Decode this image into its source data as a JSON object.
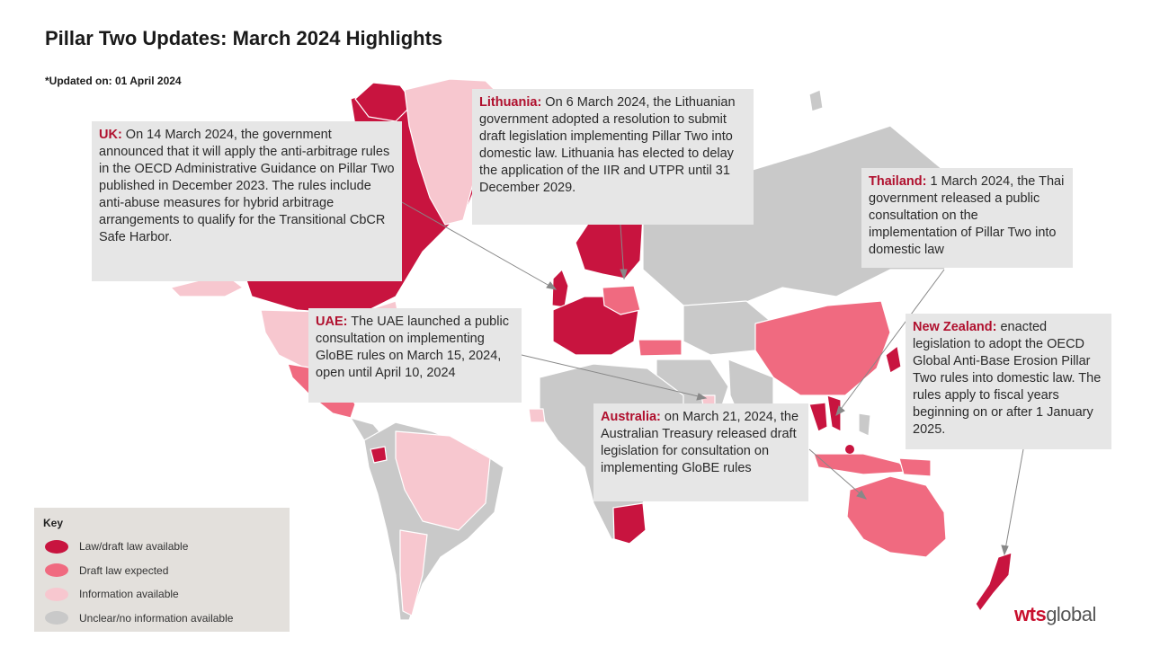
{
  "header": {
    "title": "Pillar Two Updates: March 2024 Highlights",
    "updated": "*Updated on: 01 April 2024"
  },
  "colors": {
    "law": "#c8143f",
    "draft": "#f06a80",
    "info": "#f7c7cf",
    "unclear": "#c9c9c9",
    "callout_bg": "#e6e6e6",
    "key_bg": "#e3e0dc",
    "accent": "#b0102e"
  },
  "callouts": {
    "uk": {
      "country": "UK:",
      "text": " On 14 March 2024, the government announced that it will apply the anti-arbitrage rules in the OECD Administrative Guidance on Pillar Two published in December 2023. The rules include anti-abuse measures for hybrid arbitrage arrangements to qualify for the Transitional CbCR Safe Harbor."
    },
    "lithuania": {
      "country": "Lithuania:",
      "text": " On 6 March 2024, the Lithuanian government adopted a resolution to submit draft legislation implementing Pillar Two into domestic law. Lithuania has elected to delay the application of the IIR and UTPR until 31 December 2029."
    },
    "thailand": {
      "country": "Thailand:",
      "text": " 1 March 2024, the Thai government released a public consultation on the implementation of Pillar Two into domestic law"
    },
    "uae": {
      "country": "UAE:",
      "text": " The UAE launched a public consultation on implementing GloBE rules on March 15, 2024, open until April 10, 2024"
    },
    "australia": {
      "country": "Australia:",
      "text": " on March 21, 2024, the Australian Treasury released draft legislation for consultation on implementing GloBE rules"
    },
    "new_zealand": {
      "country": "New Zealand:",
      "text": " enacted legislation to adopt the OECD Global Anti-Base Erosion Pillar Two rules into domestic law. The rules apply to fiscal years beginning on or after 1 January 2025."
    }
  },
  "key": {
    "title": "Key",
    "items": [
      {
        "label": "Law/draft law available",
        "color": "#c8143f"
      },
      {
        "label": "Draft law expected",
        "color": "#f06a80"
      },
      {
        "label": "Information available",
        "color": "#f7c7cf"
      },
      {
        "label": "Unclear/no information available",
        "color": "#c9c9c9"
      }
    ]
  },
  "logo": {
    "wts": "wts",
    "global": "global"
  }
}
